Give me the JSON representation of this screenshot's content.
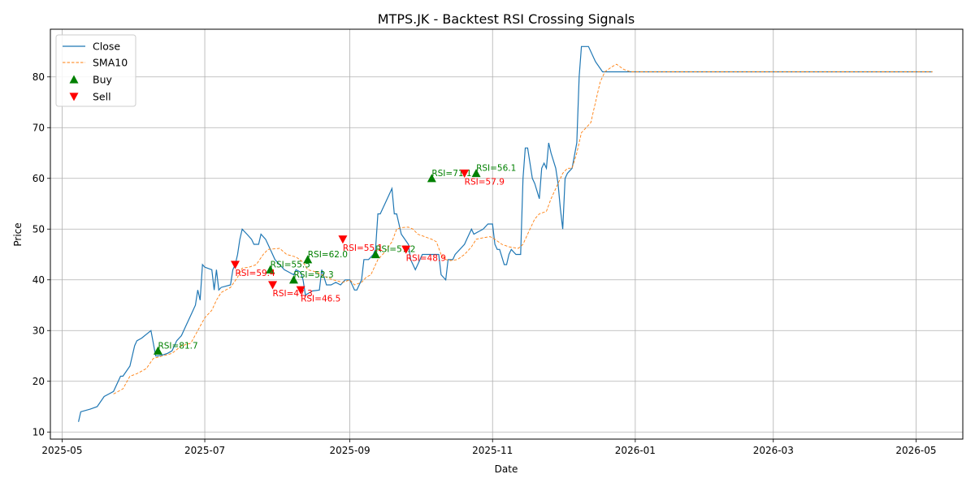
{
  "chart_data": {
    "type": "line",
    "title": "MTPS.JK - Backtest RSI Crossing Signals",
    "xlabel": "Date",
    "ylabel": "Price",
    "x_ticks": [
      "2025-05",
      "2025-07",
      "2025-09",
      "2025-11",
      "2026-01",
      "2026-03",
      "2026-05"
    ],
    "y_ticks": [
      10,
      20,
      30,
      40,
      50,
      60,
      70,
      80
    ],
    "xlim": [
      "2025-04-26",
      "2026-05-21"
    ],
    "ylim": [
      8.6,
      89.4
    ],
    "grid": true,
    "legend_position": "upper left",
    "legend": [
      "Close",
      "SMA10",
      "Buy",
      "Sell"
    ],
    "colors": {
      "close": "#1f77b4",
      "sma": "#ff7f0e",
      "buy": "#008000",
      "sell": "#ff0000",
      "grid": "#b0b0b0"
    },
    "series": [
      {
        "name": "Close",
        "style": "solid",
        "points": [
          [
            "2025-05-08",
            12
          ],
          [
            "2025-05-09",
            14
          ],
          [
            "2025-05-13",
            14.5
          ],
          [
            "2025-05-16",
            15
          ],
          [
            "2025-05-19",
            17
          ],
          [
            "2025-05-21",
            17.5
          ],
          [
            "2025-05-23",
            18
          ],
          [
            "2025-05-26",
            21
          ],
          [
            "2025-05-27",
            21
          ],
          [
            "2025-05-30",
            23
          ],
          [
            "2025-06-01",
            27
          ],
          [
            "2025-06-02",
            28
          ],
          [
            "2025-06-04",
            28.5
          ],
          [
            "2025-06-08",
            30
          ],
          [
            "2025-06-10",
            25
          ],
          [
            "2025-06-11",
            25
          ],
          [
            "2025-06-13",
            25.2
          ],
          [
            "2025-06-15",
            25.5
          ],
          [
            "2025-06-17",
            26
          ],
          [
            "2025-06-19",
            28
          ],
          [
            "2025-06-21",
            29
          ],
          [
            "2025-06-23",
            31
          ],
          [
            "2025-06-25",
            33
          ],
          [
            "2025-06-27",
            35
          ],
          [
            "2025-06-28",
            38
          ],
          [
            "2025-06-29",
            36
          ],
          [
            "2025-06-30",
            43
          ],
          [
            "2025-07-01",
            42.5
          ],
          [
            "2025-07-04",
            42
          ],
          [
            "2025-07-05",
            38
          ],
          [
            "2025-07-06",
            42
          ],
          [
            "2025-07-07",
            38
          ],
          [
            "2025-07-08",
            38.5
          ],
          [
            "2025-07-12",
            39
          ],
          [
            "2025-07-13",
            42
          ],
          [
            "2025-07-14",
            43
          ],
          [
            "2025-07-15",
            45
          ],
          [
            "2025-07-16",
            48
          ],
          [
            "2025-07-17",
            50
          ],
          [
            "2025-07-19",
            49
          ],
          [
            "2025-07-21",
            48
          ],
          [
            "2025-07-22",
            47
          ],
          [
            "2025-07-24",
            47
          ],
          [
            "2025-07-25",
            49
          ],
          [
            "2025-07-27",
            48
          ],
          [
            "2025-07-28",
            47
          ],
          [
            "2025-07-31",
            44
          ],
          [
            "2025-08-02",
            43
          ],
          [
            "2025-08-04",
            42
          ],
          [
            "2025-08-06",
            41.5
          ],
          [
            "2025-08-08",
            41
          ],
          [
            "2025-08-09",
            42
          ],
          [
            "2025-08-11",
            41.5
          ],
          [
            "2025-08-12",
            40
          ],
          [
            "2025-08-13",
            37
          ],
          [
            "2025-08-16",
            37.8
          ],
          [
            "2025-08-19",
            38
          ],
          [
            "2025-08-20",
            42
          ],
          [
            "2025-08-22",
            39
          ],
          [
            "2025-08-24",
            39
          ],
          [
            "2025-08-26",
            39.5
          ],
          [
            "2025-08-28",
            39
          ],
          [
            "2025-08-30",
            40
          ],
          [
            "2025-09-01",
            40
          ],
          [
            "2025-09-03",
            38
          ],
          [
            "2025-09-04",
            38
          ],
          [
            "2025-09-06",
            40
          ],
          [
            "2025-09-07",
            44
          ],
          [
            "2025-09-09",
            44
          ],
          [
            "2025-09-11",
            45
          ],
          [
            "2025-09-12",
            46
          ],
          [
            "2025-09-13",
            53
          ],
          [
            "2025-09-14",
            53
          ],
          [
            "2025-09-16",
            55
          ],
          [
            "2025-09-19",
            58
          ],
          [
            "2025-09-20",
            53
          ],
          [
            "2025-09-21",
            53
          ],
          [
            "2025-09-23",
            49
          ],
          [
            "2025-09-26",
            47
          ],
          [
            "2025-09-27",
            44
          ],
          [
            "2025-09-29",
            42
          ],
          [
            "2025-09-30",
            43
          ],
          [
            "2025-10-02",
            45
          ],
          [
            "2025-10-05",
            45
          ],
          [
            "2025-10-08",
            45
          ],
          [
            "2025-10-09",
            45
          ],
          [
            "2025-10-10",
            41
          ],
          [
            "2025-10-12",
            40
          ],
          [
            "2025-10-13",
            44
          ],
          [
            "2025-10-15",
            44
          ],
          [
            "2025-10-16",
            45
          ],
          [
            "2025-10-20",
            47
          ],
          [
            "2025-10-21",
            48
          ],
          [
            "2025-10-23",
            50
          ],
          [
            "2025-10-24",
            49
          ],
          [
            "2025-10-26",
            49.5
          ],
          [
            "2025-10-28",
            50
          ],
          [
            "2025-10-30",
            51
          ],
          [
            "2025-11-01",
            51
          ],
          [
            "2025-11-02",
            47
          ],
          [
            "2025-11-03",
            46
          ],
          [
            "2025-11-04",
            46
          ],
          [
            "2025-11-06",
            43
          ],
          [
            "2025-11-07",
            43
          ],
          [
            "2025-11-08",
            45
          ],
          [
            "2025-11-09",
            46
          ],
          [
            "2025-11-11",
            45
          ],
          [
            "2025-11-13",
            45
          ],
          [
            "2025-11-14",
            60
          ],
          [
            "2025-11-15",
            66
          ],
          [
            "2025-11-16",
            66
          ],
          [
            "2025-11-18",
            60
          ],
          [
            "2025-11-19",
            59
          ],
          [
            "2025-11-21",
            56
          ],
          [
            "2025-11-22",
            62
          ],
          [
            "2025-11-23",
            63
          ],
          [
            "2025-11-24",
            62
          ],
          [
            "2025-11-25",
            67
          ],
          [
            "2025-11-26",
            65
          ],
          [
            "2025-11-28",
            62
          ],
          [
            "2025-11-29",
            59
          ],
          [
            "2025-11-30",
            54
          ],
          [
            "2025-12-01",
            50
          ],
          [
            "2025-12-02",
            60
          ],
          [
            "2025-12-03",
            61
          ],
          [
            "2025-12-05",
            62
          ],
          [
            "2025-12-07",
            67
          ],
          [
            "2025-12-08",
            80
          ],
          [
            "2025-12-09",
            86
          ],
          [
            "2025-12-11",
            86
          ],
          [
            "2025-12-12",
            86
          ],
          [
            "2025-12-15",
            83
          ],
          [
            "2025-12-18",
            81
          ],
          [
            "2025-12-20",
            81
          ],
          [
            "2025-12-24",
            81
          ],
          [
            "2025-12-30",
            81
          ],
          [
            "2026-05-08",
            81
          ]
        ]
      },
      {
        "name": "SMA10",
        "style": "dashed",
        "points": [
          [
            "2025-05-23",
            17.5
          ],
          [
            "2025-05-27",
            18.5
          ],
          [
            "2025-05-30",
            21
          ],
          [
            "2025-06-02",
            21.5
          ],
          [
            "2025-06-06",
            22.5
          ],
          [
            "2025-06-09",
            24.5
          ],
          [
            "2025-06-13",
            25
          ],
          [
            "2025-06-17",
            25.5
          ],
          [
            "2025-06-21",
            27
          ],
          [
            "2025-06-25",
            27.5
          ],
          [
            "2025-06-28",
            30
          ],
          [
            "2025-07-01",
            32.5
          ],
          [
            "2025-07-04",
            34
          ],
          [
            "2025-07-06",
            36
          ],
          [
            "2025-07-08",
            37.5
          ],
          [
            "2025-07-12",
            38.5
          ],
          [
            "2025-07-15",
            40.5
          ],
          [
            "2025-07-17",
            42.3
          ],
          [
            "2025-07-20",
            42.5
          ],
          [
            "2025-07-23",
            43
          ],
          [
            "2025-07-26",
            45
          ],
          [
            "2025-07-28",
            46
          ],
          [
            "2025-08-02",
            46.2
          ],
          [
            "2025-08-05",
            45
          ],
          [
            "2025-08-09",
            44.5
          ],
          [
            "2025-08-12",
            43.5
          ],
          [
            "2025-08-14",
            42
          ],
          [
            "2025-08-18",
            41.5
          ],
          [
            "2025-08-22",
            40.5
          ],
          [
            "2025-08-25",
            40
          ],
          [
            "2025-08-29",
            39.5
          ],
          [
            "2025-09-01",
            40
          ],
          [
            "2025-09-03",
            39
          ],
          [
            "2025-09-06",
            39.5
          ],
          [
            "2025-09-08",
            40.5
          ],
          [
            "2025-09-10",
            41
          ],
          [
            "2025-09-13",
            44
          ],
          [
            "2025-09-16",
            45.5
          ],
          [
            "2025-09-19",
            47.5
          ],
          [
            "2025-09-21",
            50
          ],
          [
            "2025-09-23",
            50.3
          ],
          [
            "2025-09-26",
            50.4
          ],
          [
            "2025-09-28",
            50
          ],
          [
            "2025-09-30",
            49
          ],
          [
            "2025-10-03",
            48.5
          ],
          [
            "2025-10-06",
            48
          ],
          [
            "2025-10-08",
            47.5
          ],
          [
            "2025-10-10",
            45
          ],
          [
            "2025-10-12",
            44
          ],
          [
            "2025-10-14",
            43.8
          ],
          [
            "2025-10-17",
            44
          ],
          [
            "2025-10-20",
            45
          ],
          [
            "2025-10-23",
            46.5
          ],
          [
            "2025-10-25",
            48
          ],
          [
            "2025-10-28",
            48.3
          ],
          [
            "2025-10-31",
            48.5
          ],
          [
            "2025-11-02",
            48
          ],
          [
            "2025-11-05",
            47
          ],
          [
            "2025-11-08",
            46.5
          ],
          [
            "2025-11-12",
            46.2
          ],
          [
            "2025-11-14",
            47
          ],
          [
            "2025-11-16",
            49
          ],
          [
            "2025-11-19",
            52
          ],
          [
            "2025-11-21",
            53
          ],
          [
            "2025-11-24",
            53.5
          ],
          [
            "2025-11-26",
            56
          ],
          [
            "2025-11-28",
            58
          ],
          [
            "2025-11-30",
            60
          ],
          [
            "2025-12-01",
            61
          ],
          [
            "2025-12-03",
            62
          ],
          [
            "2025-12-05",
            62
          ],
          [
            "2025-12-07",
            65
          ],
          [
            "2025-12-09",
            69
          ],
          [
            "2025-12-11",
            70
          ],
          [
            "2025-12-13",
            71
          ],
          [
            "2025-12-15",
            75
          ],
          [
            "2025-12-17",
            79
          ],
          [
            "2025-12-19",
            81
          ],
          [
            "2025-12-22",
            82
          ],
          [
            "2025-12-24",
            82.5
          ],
          [
            "2025-12-27",
            81.5
          ],
          [
            "2025-12-30",
            81
          ],
          [
            "2026-05-08",
            81
          ]
        ]
      }
    ],
    "buy_signals": [
      {
        "date": "2025-06-11",
        "price": 26,
        "label": "RSI=81.7"
      },
      {
        "date": "2025-07-29",
        "price": 42,
        "label": "RSI=55.5"
      },
      {
        "date": "2025-08-08",
        "price": 40,
        "label": "RSI=52.3"
      },
      {
        "date": "2025-08-14",
        "price": 44,
        "label": "RSI=62.0"
      },
      {
        "date": "2025-09-12",
        "price": 45,
        "label": "RSI=57.2"
      },
      {
        "date": "2025-10-06",
        "price": 60,
        "label": "RSI=71.1"
      },
      {
        "date": "2025-10-25",
        "price": 61,
        "label": "RSI=56.1"
      }
    ],
    "sell_signals": [
      {
        "date": "2025-07-14",
        "price": 43,
        "label": "RSI=59.4"
      },
      {
        "date": "2025-07-30",
        "price": 39,
        "label": "RSI=47.3"
      },
      {
        "date": "2025-08-11",
        "price": 38,
        "label": "RSI=46.5"
      },
      {
        "date": "2025-08-29",
        "price": 48,
        "label": "RSI=55.1"
      },
      {
        "date": "2025-09-25",
        "price": 46,
        "label": "RSI=48.9"
      },
      {
        "date": "2025-10-20",
        "price": 61,
        "label": "RSI=57.9"
      }
    ]
  }
}
